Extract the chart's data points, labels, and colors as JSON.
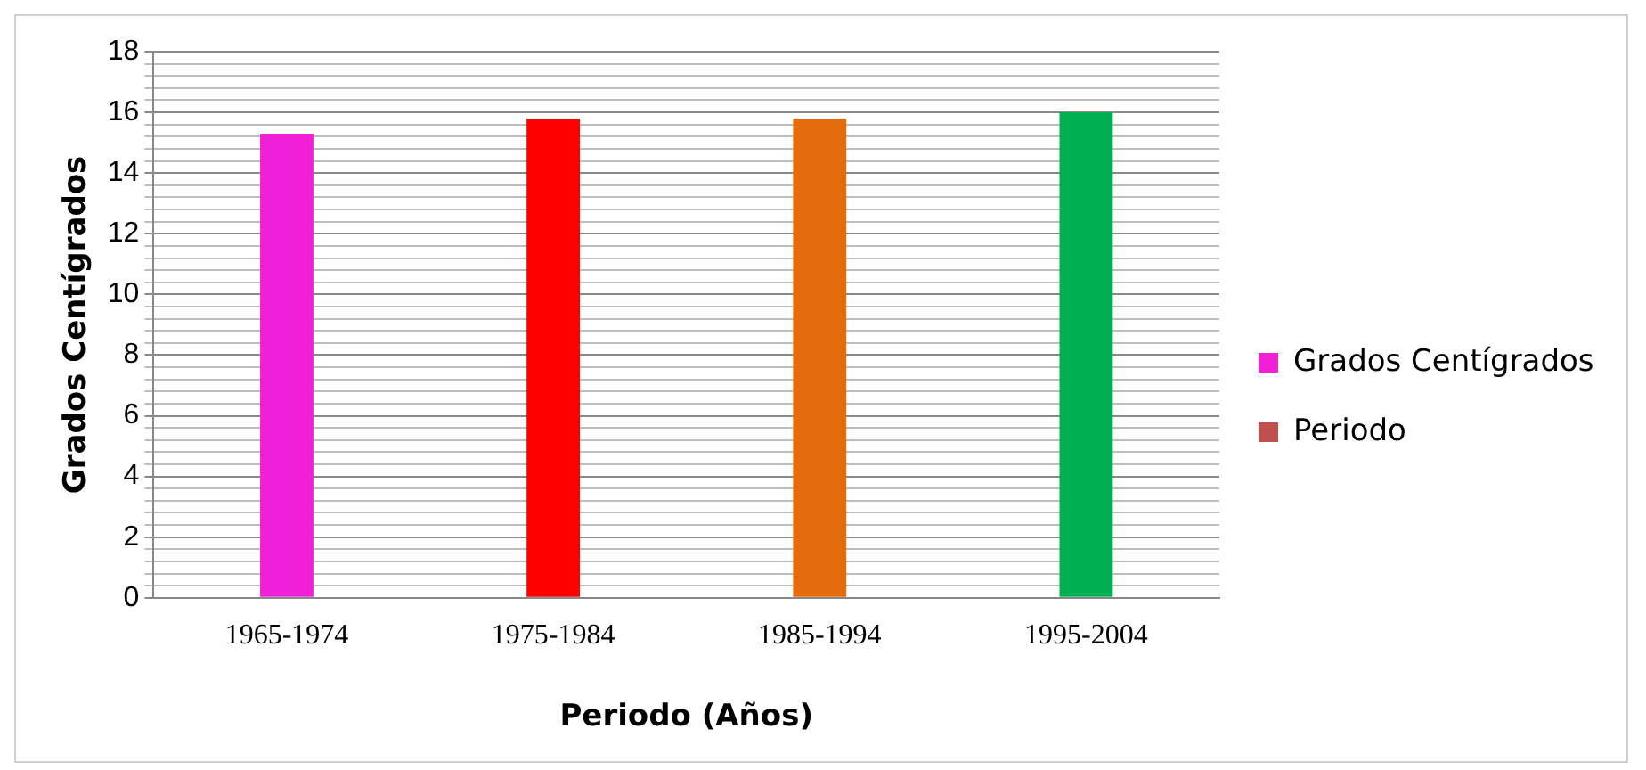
{
  "chart_data": {
    "type": "bar",
    "xlabel": "Periodo (Años)",
    "ylabel": "Grados Centígrados",
    "categories": [
      "1965-1974",
      "1975-1984",
      "1985-1994",
      "1995-2004"
    ],
    "series": [
      {
        "name": "Grados Centígrados",
        "color": "#f020d8",
        "colors": [
          "#f020d8",
          "#ff0000",
          "#e46c0a",
          "#00b050"
        ],
        "values": [
          15.3,
          15.8,
          15.8,
          16.0
        ]
      },
      {
        "name": "Periodo",
        "color": "#c0504d",
        "values": [
          null,
          null,
          null,
          null
        ]
      }
    ],
    "ylim": [
      0,
      18
    ],
    "yticks": [
      0,
      {
        "value": 0.4,
        "label": null
      },
      {
        "value": 0.8,
        "label": null
      },
      {
        "value": 1.2,
        "label": null
      },
      {
        "value": 1.6,
        "label": null
      },
      2,
      {
        "value": 2.4,
        "label": null
      },
      {
        "value": 2.8,
        "label": null
      },
      {
        "value": 3.2,
        "label": null
      },
      {
        "value": 3.6,
        "label": null
      },
      4,
      {
        "value": 4.4,
        "label": null
      },
      {
        "value": 4.8,
        "label": null
      },
      {
        "value": 5.2,
        "label": null
      },
      {
        "value": 5.6,
        "label": null
      },
      6,
      {
        "value": 6.4,
        "label": null
      },
      {
        "value": 6.8,
        "label": null
      },
      {
        "value": 7.2,
        "label": null
      },
      {
        "value": 7.6,
        "label": null
      },
      8,
      {
        "value": 8.4,
        "label": null
      },
      {
        "value": 8.8,
        "label": null
      },
      {
        "value": 9.2,
        "label": null
      },
      {
        "value": 9.6,
        "label": null
      },
      10,
      {
        "value": 10.4,
        "label": null
      },
      {
        "value": 10.8,
        "label": null
      },
      {
        "value": 11.2,
        "label": null
      },
      {
        "value": 11.6,
        "label": null
      },
      12,
      {
        "value": 12.4,
        "label": null
      },
      {
        "value": 12.8,
        "label": null
      },
      {
        "value": 13.2,
        "label": null
      },
      {
        "value": 13.6,
        "label": null
      },
      14,
      {
        "value": 14.4,
        "label": null
      },
      {
        "value": 14.8,
        "label": null
      },
      {
        "value": 15.2,
        "label": null
      },
      {
        "value": 15.6,
        "label": null
      },
      16,
      {
        "value": 16.4,
        "label": null
      },
      {
        "value": 16.8,
        "label": null
      },
      {
        "value": 17.2,
        "label": null
      },
      {
        "value": 17.6,
        "label": null
      },
      18
    ],
    "grid": "y",
    "legend": "right"
  }
}
